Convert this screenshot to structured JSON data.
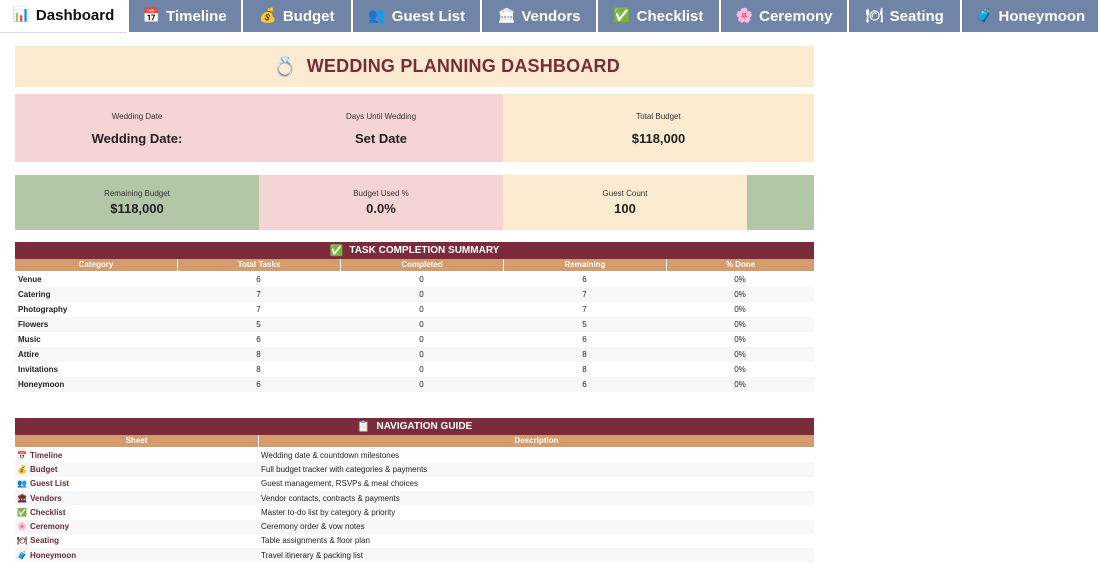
{
  "tabs": [
    {
      "icon": "📊",
      "label": "Dashboard",
      "active": true
    },
    {
      "icon": "📅",
      "label": "Timeline"
    },
    {
      "icon": "💰",
      "label": "Budget"
    },
    {
      "icon": "👥",
      "label": "Guest List"
    },
    {
      "icon": "🏛",
      "label": "Vendors"
    },
    {
      "icon": "✅",
      "label": "Checklist"
    },
    {
      "icon": "🌸",
      "label": "Ceremony"
    },
    {
      "icon": "🍽",
      "label": "Seating"
    },
    {
      "icon": "🧳",
      "label": "Honeymoon"
    }
  ],
  "title": {
    "icon": "💍",
    "text": "WEDDING PLANNING DASHBOARD"
  },
  "kpis": {
    "wedding_date": {
      "label": "Wedding Date",
      "value": "Wedding Date:"
    },
    "days_until": {
      "label": "Days Until Wedding",
      "value": "Set Date"
    },
    "total_budget": {
      "label": "Total Budget",
      "value": "$118,000"
    },
    "remaining_budget": {
      "label": "Remaining Budget",
      "value": "$118,000"
    },
    "budget_used": {
      "label": "Budget Used %",
      "value": "0.0%"
    },
    "guest_count": {
      "label": "Guest Count",
      "value": "100"
    }
  },
  "task_summary": {
    "icon": "✅",
    "title": "TASK COMPLETION SUMMARY",
    "columns": [
      "Category",
      "Total Tasks",
      "Completed",
      "Remaining",
      "% Done"
    ],
    "rows": [
      [
        "Venue",
        "6",
        "0",
        "6",
        "0%"
      ],
      [
        "Catering",
        "7",
        "0",
        "7",
        "0%"
      ],
      [
        "Photography",
        "7",
        "0",
        "7",
        "0%"
      ],
      [
        "Flowers",
        "5",
        "0",
        "5",
        "0%"
      ],
      [
        "Music",
        "6",
        "0",
        "6",
        "0%"
      ],
      [
        "Attire",
        "8",
        "0",
        "8",
        "0%"
      ],
      [
        "Invitations",
        "8",
        "0",
        "8",
        "0%"
      ],
      [
        "Honeymoon",
        "6",
        "0",
        "6",
        "0%"
      ]
    ]
  },
  "nav_guide": {
    "icon": "📋",
    "title": "NAVIGATION GUIDE",
    "columns": [
      "Sheet",
      "Description"
    ],
    "rows": [
      {
        "icon": "📅",
        "sheet": "Timeline",
        "desc": "Wedding date & countdown milestones"
      },
      {
        "icon": "💰",
        "sheet": "Budget",
        "desc": "Full budget tracker with categories & payments"
      },
      {
        "icon": "👥",
        "sheet": "Guest List",
        "desc": "Guest management, RSVPs & meal choices"
      },
      {
        "icon": "🏛",
        "sheet": "Vendors",
        "desc": "Vendor contacts, contracts & payments"
      },
      {
        "icon": "✅",
        "sheet": "Checklist",
        "desc": "Master to-do list by category & priority"
      },
      {
        "icon": "🌸",
        "sheet": "Ceremony",
        "desc": "Ceremony order & vow notes"
      },
      {
        "icon": "🍽",
        "sheet": "Seating",
        "desc": "Table assignments & floor plan"
      },
      {
        "icon": "🧳",
        "sheet": "Honeymoon",
        "desc": "Travel itinerary & packing list"
      }
    ]
  }
}
